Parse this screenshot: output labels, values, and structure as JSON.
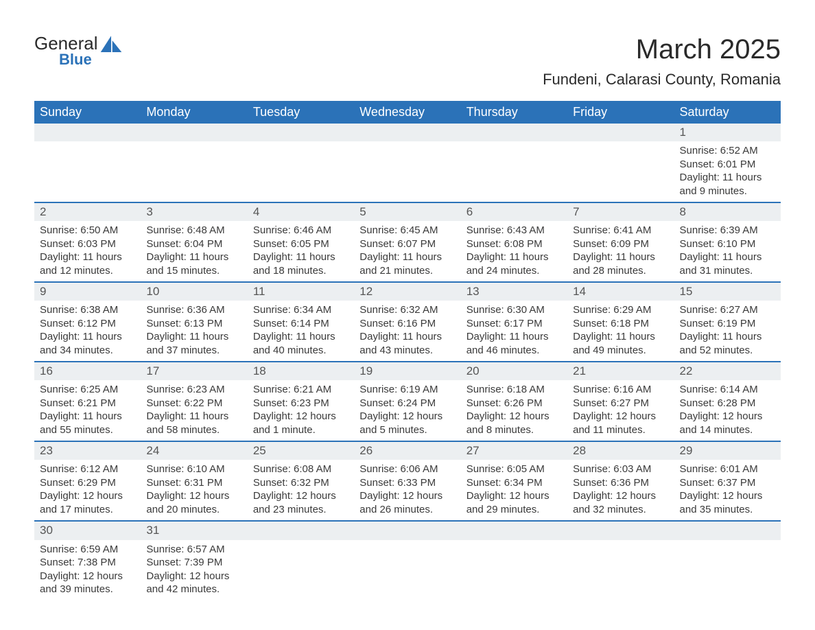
{
  "logo": {
    "general": "General",
    "blue": "Blue"
  },
  "header": {
    "month_title": "March 2025",
    "location": "Fundeni, Calarasi County, Romania"
  },
  "colors": {
    "header_bg": "#2b72b8",
    "header_text": "#ffffff",
    "daynum_bg": "#eceff1",
    "row_border": "#2b72b8",
    "body_text": "#3a3a3a",
    "page_bg": "#ffffff"
  },
  "weekdays": [
    "Sunday",
    "Monday",
    "Tuesday",
    "Wednesday",
    "Thursday",
    "Friday",
    "Saturday"
  ],
  "weeks": [
    [
      null,
      null,
      null,
      null,
      null,
      null,
      {
        "day": "1",
        "sunrise": "Sunrise: 6:52 AM",
        "sunset": "Sunset: 6:01 PM",
        "daylight1": "Daylight: 11 hours",
        "daylight2": "and 9 minutes."
      }
    ],
    [
      {
        "day": "2",
        "sunrise": "Sunrise: 6:50 AM",
        "sunset": "Sunset: 6:03 PM",
        "daylight1": "Daylight: 11 hours",
        "daylight2": "and 12 minutes."
      },
      {
        "day": "3",
        "sunrise": "Sunrise: 6:48 AM",
        "sunset": "Sunset: 6:04 PM",
        "daylight1": "Daylight: 11 hours",
        "daylight2": "and 15 minutes."
      },
      {
        "day": "4",
        "sunrise": "Sunrise: 6:46 AM",
        "sunset": "Sunset: 6:05 PM",
        "daylight1": "Daylight: 11 hours",
        "daylight2": "and 18 minutes."
      },
      {
        "day": "5",
        "sunrise": "Sunrise: 6:45 AM",
        "sunset": "Sunset: 6:07 PM",
        "daylight1": "Daylight: 11 hours",
        "daylight2": "and 21 minutes."
      },
      {
        "day": "6",
        "sunrise": "Sunrise: 6:43 AM",
        "sunset": "Sunset: 6:08 PM",
        "daylight1": "Daylight: 11 hours",
        "daylight2": "and 24 minutes."
      },
      {
        "day": "7",
        "sunrise": "Sunrise: 6:41 AM",
        "sunset": "Sunset: 6:09 PM",
        "daylight1": "Daylight: 11 hours",
        "daylight2": "and 28 minutes."
      },
      {
        "day": "8",
        "sunrise": "Sunrise: 6:39 AM",
        "sunset": "Sunset: 6:10 PM",
        "daylight1": "Daylight: 11 hours",
        "daylight2": "and 31 minutes."
      }
    ],
    [
      {
        "day": "9",
        "sunrise": "Sunrise: 6:38 AM",
        "sunset": "Sunset: 6:12 PM",
        "daylight1": "Daylight: 11 hours",
        "daylight2": "and 34 minutes."
      },
      {
        "day": "10",
        "sunrise": "Sunrise: 6:36 AM",
        "sunset": "Sunset: 6:13 PM",
        "daylight1": "Daylight: 11 hours",
        "daylight2": "and 37 minutes."
      },
      {
        "day": "11",
        "sunrise": "Sunrise: 6:34 AM",
        "sunset": "Sunset: 6:14 PM",
        "daylight1": "Daylight: 11 hours",
        "daylight2": "and 40 minutes."
      },
      {
        "day": "12",
        "sunrise": "Sunrise: 6:32 AM",
        "sunset": "Sunset: 6:16 PM",
        "daylight1": "Daylight: 11 hours",
        "daylight2": "and 43 minutes."
      },
      {
        "day": "13",
        "sunrise": "Sunrise: 6:30 AM",
        "sunset": "Sunset: 6:17 PM",
        "daylight1": "Daylight: 11 hours",
        "daylight2": "and 46 minutes."
      },
      {
        "day": "14",
        "sunrise": "Sunrise: 6:29 AM",
        "sunset": "Sunset: 6:18 PM",
        "daylight1": "Daylight: 11 hours",
        "daylight2": "and 49 minutes."
      },
      {
        "day": "15",
        "sunrise": "Sunrise: 6:27 AM",
        "sunset": "Sunset: 6:19 PM",
        "daylight1": "Daylight: 11 hours",
        "daylight2": "and 52 minutes."
      }
    ],
    [
      {
        "day": "16",
        "sunrise": "Sunrise: 6:25 AM",
        "sunset": "Sunset: 6:21 PM",
        "daylight1": "Daylight: 11 hours",
        "daylight2": "and 55 minutes."
      },
      {
        "day": "17",
        "sunrise": "Sunrise: 6:23 AM",
        "sunset": "Sunset: 6:22 PM",
        "daylight1": "Daylight: 11 hours",
        "daylight2": "and 58 minutes."
      },
      {
        "day": "18",
        "sunrise": "Sunrise: 6:21 AM",
        "sunset": "Sunset: 6:23 PM",
        "daylight1": "Daylight: 12 hours",
        "daylight2": "and 1 minute."
      },
      {
        "day": "19",
        "sunrise": "Sunrise: 6:19 AM",
        "sunset": "Sunset: 6:24 PM",
        "daylight1": "Daylight: 12 hours",
        "daylight2": "and 5 minutes."
      },
      {
        "day": "20",
        "sunrise": "Sunrise: 6:18 AM",
        "sunset": "Sunset: 6:26 PM",
        "daylight1": "Daylight: 12 hours",
        "daylight2": "and 8 minutes."
      },
      {
        "day": "21",
        "sunrise": "Sunrise: 6:16 AM",
        "sunset": "Sunset: 6:27 PM",
        "daylight1": "Daylight: 12 hours",
        "daylight2": "and 11 minutes."
      },
      {
        "day": "22",
        "sunrise": "Sunrise: 6:14 AM",
        "sunset": "Sunset: 6:28 PM",
        "daylight1": "Daylight: 12 hours",
        "daylight2": "and 14 minutes."
      }
    ],
    [
      {
        "day": "23",
        "sunrise": "Sunrise: 6:12 AM",
        "sunset": "Sunset: 6:29 PM",
        "daylight1": "Daylight: 12 hours",
        "daylight2": "and 17 minutes."
      },
      {
        "day": "24",
        "sunrise": "Sunrise: 6:10 AM",
        "sunset": "Sunset: 6:31 PM",
        "daylight1": "Daylight: 12 hours",
        "daylight2": "and 20 minutes."
      },
      {
        "day": "25",
        "sunrise": "Sunrise: 6:08 AM",
        "sunset": "Sunset: 6:32 PM",
        "daylight1": "Daylight: 12 hours",
        "daylight2": "and 23 minutes."
      },
      {
        "day": "26",
        "sunrise": "Sunrise: 6:06 AM",
        "sunset": "Sunset: 6:33 PM",
        "daylight1": "Daylight: 12 hours",
        "daylight2": "and 26 minutes."
      },
      {
        "day": "27",
        "sunrise": "Sunrise: 6:05 AM",
        "sunset": "Sunset: 6:34 PM",
        "daylight1": "Daylight: 12 hours",
        "daylight2": "and 29 minutes."
      },
      {
        "day": "28",
        "sunrise": "Sunrise: 6:03 AM",
        "sunset": "Sunset: 6:36 PM",
        "daylight1": "Daylight: 12 hours",
        "daylight2": "and 32 minutes."
      },
      {
        "day": "29",
        "sunrise": "Sunrise: 6:01 AM",
        "sunset": "Sunset: 6:37 PM",
        "daylight1": "Daylight: 12 hours",
        "daylight2": "and 35 minutes."
      }
    ],
    [
      {
        "day": "30",
        "sunrise": "Sunrise: 6:59 AM",
        "sunset": "Sunset: 7:38 PM",
        "daylight1": "Daylight: 12 hours",
        "daylight2": "and 39 minutes."
      },
      {
        "day": "31",
        "sunrise": "Sunrise: 6:57 AM",
        "sunset": "Sunset: 7:39 PM",
        "daylight1": "Daylight: 12 hours",
        "daylight2": "and 42 minutes."
      },
      null,
      null,
      null,
      null,
      null
    ]
  ]
}
